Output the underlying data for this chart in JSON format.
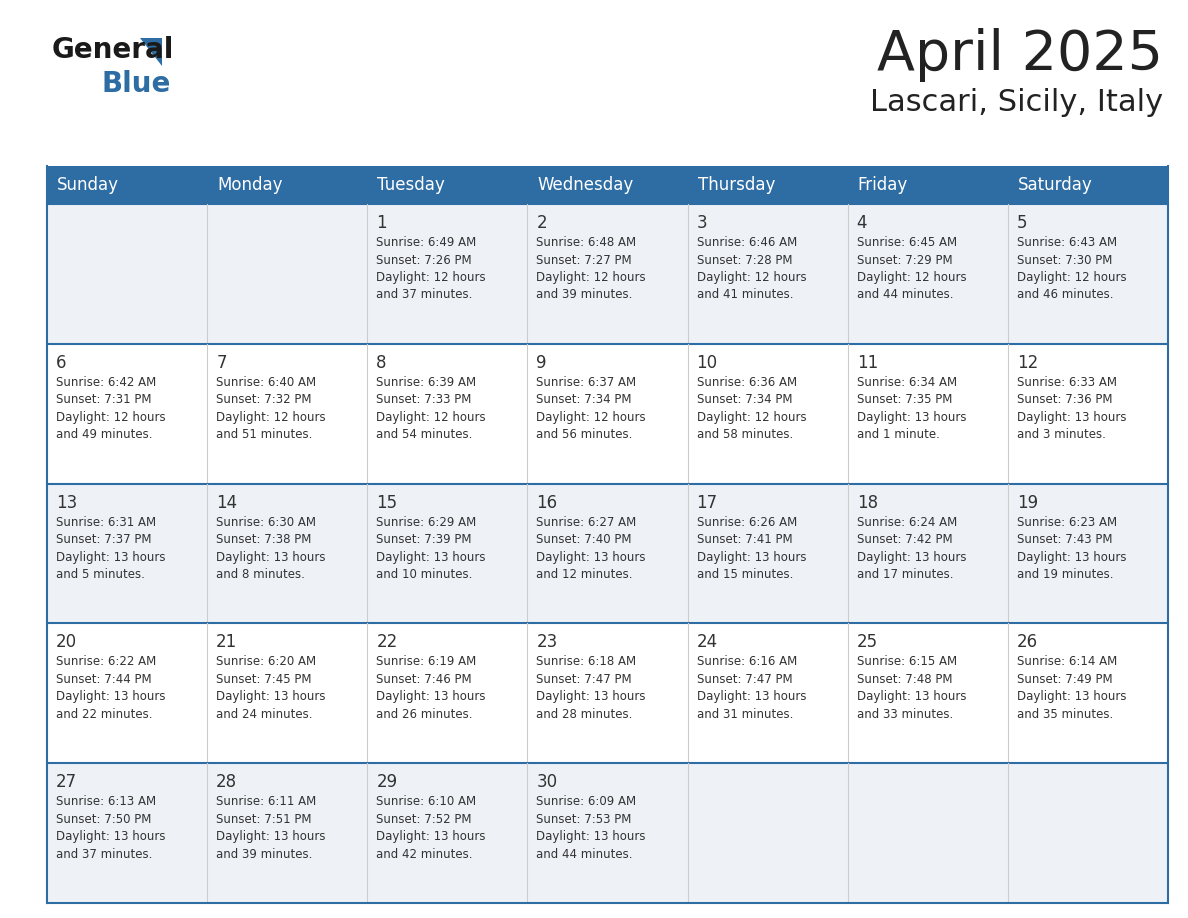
{
  "title": "April 2025",
  "subtitle": "Lascari, Sicily, Italy",
  "header_bg": "#2e6da4",
  "header_text_color": "#ffffff",
  "cell_bg_odd": "#eef2f7",
  "cell_bg_even": "#ffffff",
  "border_color": "#2e6da4",
  "text_color": "#333333",
  "day_headers": [
    "Sunday",
    "Monday",
    "Tuesday",
    "Wednesday",
    "Thursday",
    "Friday",
    "Saturday"
  ],
  "weeks": [
    [
      {
        "day": "",
        "info": ""
      },
      {
        "day": "",
        "info": ""
      },
      {
        "day": "1",
        "info": "Sunrise: 6:49 AM\nSunset: 7:26 PM\nDaylight: 12 hours\nand 37 minutes."
      },
      {
        "day": "2",
        "info": "Sunrise: 6:48 AM\nSunset: 7:27 PM\nDaylight: 12 hours\nand 39 minutes."
      },
      {
        "day": "3",
        "info": "Sunrise: 6:46 AM\nSunset: 7:28 PM\nDaylight: 12 hours\nand 41 minutes."
      },
      {
        "day": "4",
        "info": "Sunrise: 6:45 AM\nSunset: 7:29 PM\nDaylight: 12 hours\nand 44 minutes."
      },
      {
        "day": "5",
        "info": "Sunrise: 6:43 AM\nSunset: 7:30 PM\nDaylight: 12 hours\nand 46 minutes."
      }
    ],
    [
      {
        "day": "6",
        "info": "Sunrise: 6:42 AM\nSunset: 7:31 PM\nDaylight: 12 hours\nand 49 minutes."
      },
      {
        "day": "7",
        "info": "Sunrise: 6:40 AM\nSunset: 7:32 PM\nDaylight: 12 hours\nand 51 minutes."
      },
      {
        "day": "8",
        "info": "Sunrise: 6:39 AM\nSunset: 7:33 PM\nDaylight: 12 hours\nand 54 minutes."
      },
      {
        "day": "9",
        "info": "Sunrise: 6:37 AM\nSunset: 7:34 PM\nDaylight: 12 hours\nand 56 minutes."
      },
      {
        "day": "10",
        "info": "Sunrise: 6:36 AM\nSunset: 7:34 PM\nDaylight: 12 hours\nand 58 minutes."
      },
      {
        "day": "11",
        "info": "Sunrise: 6:34 AM\nSunset: 7:35 PM\nDaylight: 13 hours\nand 1 minute."
      },
      {
        "day": "12",
        "info": "Sunrise: 6:33 AM\nSunset: 7:36 PM\nDaylight: 13 hours\nand 3 minutes."
      }
    ],
    [
      {
        "day": "13",
        "info": "Sunrise: 6:31 AM\nSunset: 7:37 PM\nDaylight: 13 hours\nand 5 minutes."
      },
      {
        "day": "14",
        "info": "Sunrise: 6:30 AM\nSunset: 7:38 PM\nDaylight: 13 hours\nand 8 minutes."
      },
      {
        "day": "15",
        "info": "Sunrise: 6:29 AM\nSunset: 7:39 PM\nDaylight: 13 hours\nand 10 minutes."
      },
      {
        "day": "16",
        "info": "Sunrise: 6:27 AM\nSunset: 7:40 PM\nDaylight: 13 hours\nand 12 minutes."
      },
      {
        "day": "17",
        "info": "Sunrise: 6:26 AM\nSunset: 7:41 PM\nDaylight: 13 hours\nand 15 minutes."
      },
      {
        "day": "18",
        "info": "Sunrise: 6:24 AM\nSunset: 7:42 PM\nDaylight: 13 hours\nand 17 minutes."
      },
      {
        "day": "19",
        "info": "Sunrise: 6:23 AM\nSunset: 7:43 PM\nDaylight: 13 hours\nand 19 minutes."
      }
    ],
    [
      {
        "day": "20",
        "info": "Sunrise: 6:22 AM\nSunset: 7:44 PM\nDaylight: 13 hours\nand 22 minutes."
      },
      {
        "day": "21",
        "info": "Sunrise: 6:20 AM\nSunset: 7:45 PM\nDaylight: 13 hours\nand 24 minutes."
      },
      {
        "day": "22",
        "info": "Sunrise: 6:19 AM\nSunset: 7:46 PM\nDaylight: 13 hours\nand 26 minutes."
      },
      {
        "day": "23",
        "info": "Sunrise: 6:18 AM\nSunset: 7:47 PM\nDaylight: 13 hours\nand 28 minutes."
      },
      {
        "day": "24",
        "info": "Sunrise: 6:16 AM\nSunset: 7:47 PM\nDaylight: 13 hours\nand 31 minutes."
      },
      {
        "day": "25",
        "info": "Sunrise: 6:15 AM\nSunset: 7:48 PM\nDaylight: 13 hours\nand 33 minutes."
      },
      {
        "day": "26",
        "info": "Sunrise: 6:14 AM\nSunset: 7:49 PM\nDaylight: 13 hours\nand 35 minutes."
      }
    ],
    [
      {
        "day": "27",
        "info": "Sunrise: 6:13 AM\nSunset: 7:50 PM\nDaylight: 13 hours\nand 37 minutes."
      },
      {
        "day": "28",
        "info": "Sunrise: 6:11 AM\nSunset: 7:51 PM\nDaylight: 13 hours\nand 39 minutes."
      },
      {
        "day": "29",
        "info": "Sunrise: 6:10 AM\nSunset: 7:52 PM\nDaylight: 13 hours\nand 42 minutes."
      },
      {
        "day": "30",
        "info": "Sunrise: 6:09 AM\nSunset: 7:53 PM\nDaylight: 13 hours\nand 44 minutes."
      },
      {
        "day": "",
        "info": ""
      },
      {
        "day": "",
        "info": ""
      },
      {
        "day": "",
        "info": ""
      }
    ]
  ],
  "logo_text_general": "General",
  "logo_text_blue": "Blue",
  "logo_color_general": "#1a1a1a",
  "logo_color_blue": "#2e6da4",
  "logo_triangle_color": "#2e6da4",
  "fig_width": 11.88,
  "fig_height": 9.18,
  "dpi": 100
}
